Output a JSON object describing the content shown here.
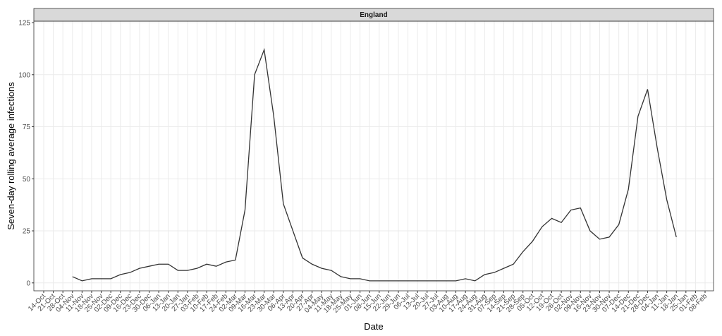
{
  "chart_data": {
    "type": "line",
    "facet": "England",
    "x_label": "Date",
    "y_label": "Seven-day rolling average infections",
    "categories": [
      "14-Oct",
      "21-Oct",
      "28-Oct",
      "04-Nov",
      "11-Nov",
      "18-Nov",
      "25-Nov",
      "02-Dec",
      "09-Dec",
      "16-Dec",
      "23-Dec",
      "30-Dec",
      "06-Jan",
      "13-Jan",
      "20-Jan",
      "27-Jan",
      "03-Feb",
      "10-Feb",
      "17-Feb",
      "24-Feb",
      "02-Mar",
      "09-Mar",
      "16-Mar",
      "23-Mar",
      "30-Mar",
      "06-Apr",
      "13-Apr",
      "20-Apr",
      "27-Apr",
      "04-May",
      "11-May",
      "18-May",
      "25-May",
      "01-Jun",
      "08-Jun",
      "15-Jun",
      "22-Jun",
      "29-Jun",
      "06-Jul",
      "13-Jul",
      "20-Jul",
      "27-Jul",
      "03-Aug",
      "10-Aug",
      "17-Aug",
      "24-Aug",
      "31-Aug",
      "07-Sep",
      "14-Sep",
      "21-Sep",
      "28-Sep",
      "05-Oct",
      "12-Oct",
      "19-Oct",
      "26-Oct",
      "02-Nov",
      "09-Nov",
      "16-Nov",
      "23-Nov",
      "30-Nov",
      "07-Dec",
      "14-Dec",
      "21-Dec",
      "28-Dec",
      "04-Jan",
      "11-Jan",
      "18-Jan",
      "25-Jan",
      "01-Feb",
      "08-Feb"
    ],
    "values": [
      null,
      null,
      null,
      3,
      1,
      2,
      2,
      2,
      4,
      5,
      7,
      8,
      9,
      9,
      6,
      6,
      7,
      9,
      8,
      10,
      11,
      35,
      100,
      112,
      80,
      38,
      25,
      12,
      9,
      7,
      6,
      3,
      2,
      2,
      1,
      1,
      1,
      1,
      1,
      1,
      1,
      1,
      1,
      1,
      2,
      1,
      4,
      5,
      7,
      9,
      15,
      20,
      27,
      31,
      29,
      35,
      36,
      25,
      21,
      22,
      28,
      45,
      80,
      93,
      65,
      40,
      22,
      null,
      null,
      null
    ],
    "color": "#333333",
    "ylim": [
      -3.8,
      125.7
    ],
    "yticks": [
      0,
      25,
      50,
      75,
      100,
      125
    ],
    "grid": true
  }
}
